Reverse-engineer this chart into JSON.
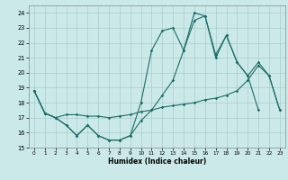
{
  "xlabel": "Humidex (Indice chaleur)",
  "xlim": [
    -0.5,
    23.5
  ],
  "ylim": [
    15,
    24.5
  ],
  "yticks": [
    15,
    16,
    17,
    18,
    19,
    20,
    21,
    22,
    23,
    24
  ],
  "xticks": [
    0,
    1,
    2,
    3,
    4,
    5,
    6,
    7,
    8,
    9,
    10,
    11,
    12,
    13,
    14,
    15,
    16,
    17,
    18,
    19,
    20,
    21,
    22,
    23
  ],
  "bg_color": "#cce9e9",
  "grid_color": "#aacccc",
  "line_color": "#1a6e68",
  "line1_x": [
    0,
    1,
    2,
    3,
    4,
    5,
    6,
    7,
    8,
    9,
    10,
    11,
    12,
    13,
    14,
    15,
    16,
    17,
    18,
    19,
    20,
    21,
    22,
    23
  ],
  "line1_y": [
    18.8,
    17.3,
    17.0,
    17.2,
    17.2,
    17.1,
    17.1,
    17.0,
    17.1,
    17.2,
    17.4,
    17.5,
    17.7,
    17.8,
    17.9,
    18.0,
    18.2,
    18.3,
    18.5,
    18.8,
    19.5,
    20.5,
    19.8,
    17.5
  ],
  "line2_x": [
    0,
    1,
    2,
    3,
    4,
    5,
    6,
    7,
    8,
    9,
    10,
    11,
    12,
    13,
    14,
    15,
    16,
    17,
    18,
    19,
    20,
    21,
    22,
    23
  ],
  "line2_y": [
    18.8,
    17.3,
    17.0,
    16.5,
    15.8,
    16.5,
    15.8,
    15.5,
    15.5,
    15.8,
    16.8,
    17.5,
    18.5,
    19.5,
    21.5,
    23.5,
    23.8,
    21.0,
    22.5,
    20.7,
    19.8,
    20.7,
    19.8,
    17.5
  ],
  "line3_x": [
    0,
    1,
    2,
    3,
    4,
    5,
    6,
    7,
    8,
    9,
    10,
    11,
    12,
    13,
    14,
    15,
    16,
    17,
    18,
    19,
    20,
    21,
    22,
    23
  ],
  "line3_y": [
    18.8,
    17.3,
    17.0,
    16.5,
    15.8,
    16.5,
    15.8,
    15.5,
    15.5,
    15.8,
    18.0,
    21.5,
    22.8,
    23.0,
    21.5,
    24.0,
    23.8,
    21.2,
    22.5,
    20.7,
    19.8,
    17.5,
    null,
    null
  ]
}
